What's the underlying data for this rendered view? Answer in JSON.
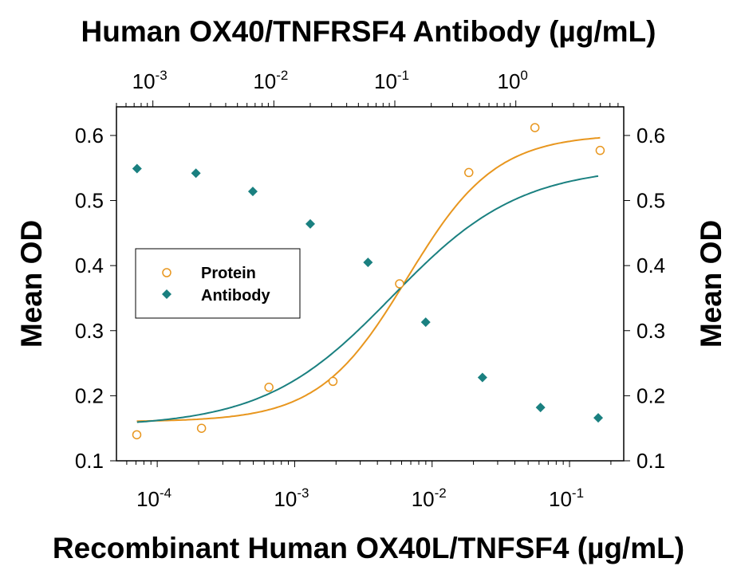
{
  "chart_data": {
    "type": "scatter",
    "title": "Human OX40/TNFRSF4 Antibody (µg/mL)",
    "xlabel": "Recombinant Human OX40L/TNFSF4 (µg/mL)",
    "ylabel_left": "Mean OD",
    "ylabel_right": "Mean OD",
    "x_bottom": {
      "scale": "log",
      "range": [
        5.05e-05,
        0.248
      ],
      "ticks": [
        {
          "base": "10",
          "exp": "-4",
          "value": 0.0001
        },
        {
          "base": "10",
          "exp": "-3",
          "value": 0.001
        },
        {
          "base": "10",
          "exp": "-2",
          "value": 0.01
        },
        {
          "base": "10",
          "exp": "-1",
          "value": 0.1
        }
      ]
    },
    "x_top": {
      "scale": "log",
      "range": [
        0.0005,
        7.8
      ],
      "ticks": [
        {
          "base": "10",
          "exp": "-3",
          "value": 0.001
        },
        {
          "base": "10",
          "exp": "-2",
          "value": 0.01
        },
        {
          "base": "10",
          "exp": "-1",
          "value": 0.1
        },
        {
          "base": "10",
          "exp": "0",
          "value": 1
        }
      ]
    },
    "y": {
      "range": [
        0.1,
        0.644
      ],
      "ticks": [
        "0.1",
        "0.2",
        "0.3",
        "0.4",
        "0.5",
        "0.6"
      ]
    },
    "grid": false,
    "legend": {
      "placement": "center-left",
      "entries": [
        "Protein",
        "Antibody"
      ]
    },
    "series": [
      {
        "name": "Protein",
        "axis": "bottom",
        "color": "#E8961E",
        "marker": "open-circle",
        "x": [
          7.1e-05,
          0.00021,
          0.00065,
          0.0019,
          0.0058,
          0.0185,
          0.056,
          0.167
        ],
        "y": [
          0.14,
          0.15,
          0.213,
          0.222,
          0.372,
          0.543,
          0.612,
          0.577
        ],
        "fit": {
          "bottom": 0.16,
          "top": 0.602,
          "ec50": 0.0066,
          "hill": 1.35
        }
      },
      {
        "name": "Antibody",
        "axis": "top",
        "color": "#1A8080",
        "marker": "filled-diamond",
        "x": [
          0.00074,
          0.00227,
          0.0067,
          0.02,
          0.06,
          0.18,
          0.53,
          1.6,
          4.8
        ],
        "y": [
          0.549,
          0.542,
          0.514,
          0.464,
          0.405,
          0.313,
          0.228,
          0.182,
          0.166
        ],
        "fit": {
          "bottom": 0.152,
          "top": 0.553,
          "ec50": 0.095,
          "hill": 0.82
        }
      }
    ]
  }
}
